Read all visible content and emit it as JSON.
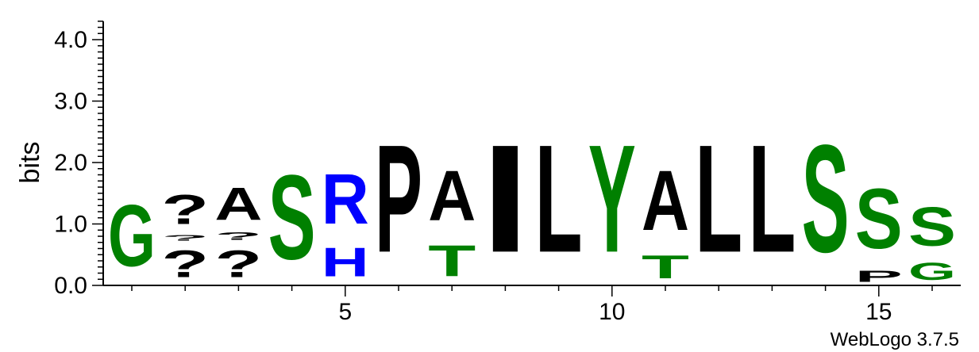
{
  "chart_data": {
    "type": "sequence-logo",
    "ylabel": "bits",
    "ylim": [
      0,
      4.3
    ],
    "y_ticks": [
      "0.0",
      "1.0",
      "2.0",
      "3.0",
      "4.0"
    ],
    "x_ticks": [
      {
        "position": 5,
        "label": "5"
      },
      {
        "position": 10,
        "label": "10"
      },
      {
        "position": 15,
        "label": "15"
      }
    ],
    "credit": "WebLogo 3.7.5",
    "colors": {
      "polar": "#008000",
      "hydrophobic": "#000000",
      "basic": "#0000ff"
    },
    "positions": [
      {
        "position": 1,
        "stack": [
          {
            "letter": "G",
            "bits": 1.6,
            "color": "#008000"
          }
        ]
      },
      {
        "position": 2,
        "stack": [
          {
            "letter": "?",
            "bits": 0.7,
            "color": "#000000"
          },
          {
            "letter": "?",
            "bits": 0.15,
            "color": "#000000"
          },
          {
            "letter": "?",
            "bits": 0.77,
            "color": "#000000"
          }
        ]
      },
      {
        "position": 3,
        "stack": [
          {
            "letter": "?",
            "bits": 0.7,
            "color": "#000000"
          },
          {
            "letter": "?",
            "bits": 0.2,
            "color": "#000000"
          },
          {
            "letter": "A",
            "bits": 0.85,
            "color": "#000000"
          }
        ]
      },
      {
        "position": 4,
        "stack": [
          {
            "letter": "S",
            "bits": 2.2,
            "color": "#008000"
          }
        ]
      },
      {
        "position": 5,
        "stack": [
          {
            "letter": "H",
            "bits": 0.75,
            "color": "#0000ff"
          },
          {
            "letter": "R",
            "bits": 1.3,
            "color": "#0000ff"
          }
        ]
      },
      {
        "position": 6,
        "stack": [
          {
            "letter": "P",
            "bits": 2.8,
            "color": "#000000"
          }
        ]
      },
      {
        "position": 7,
        "stack": [
          {
            "letter": "T",
            "bits": 0.8,
            "color": "#008000"
          },
          {
            "letter": "A",
            "bits": 1.3,
            "color": "#000000"
          }
        ]
      },
      {
        "position": 8,
        "stack": [
          {
            "letter": "I",
            "bits": 2.8,
            "color": "#000000"
          }
        ]
      },
      {
        "position": 9,
        "stack": [
          {
            "letter": "L",
            "bits": 2.8,
            "color": "#000000"
          }
        ]
      },
      {
        "position": 10,
        "stack": [
          {
            "letter": "Y",
            "bits": 2.8,
            "color": "#008000"
          }
        ]
      },
      {
        "position": 11,
        "stack": [
          {
            "letter": "T",
            "bits": 0.6,
            "color": "#008000"
          },
          {
            "letter": "A",
            "bits": 1.55,
            "color": "#000000"
          }
        ]
      },
      {
        "position": 12,
        "stack": [
          {
            "letter": "L",
            "bits": 2.8,
            "color": "#000000"
          }
        ]
      },
      {
        "position": 13,
        "stack": [
          {
            "letter": "L",
            "bits": 2.8,
            "color": "#000000"
          }
        ]
      },
      {
        "position": 14,
        "stack": [
          {
            "letter": "S",
            "bits": 2.8,
            "color": "#008000"
          }
        ]
      },
      {
        "position": 15,
        "stack": [
          {
            "letter": "P",
            "bits": 0.3,
            "color": "#000000"
          },
          {
            "letter": "S",
            "bits": 1.55,
            "color": "#008000"
          }
        ]
      },
      {
        "position": 16,
        "stack": [
          {
            "letter": "G",
            "bits": 0.45,
            "color": "#008000"
          },
          {
            "letter": "S",
            "bits": 1.0,
            "color": "#008000"
          }
        ]
      }
    ]
  }
}
